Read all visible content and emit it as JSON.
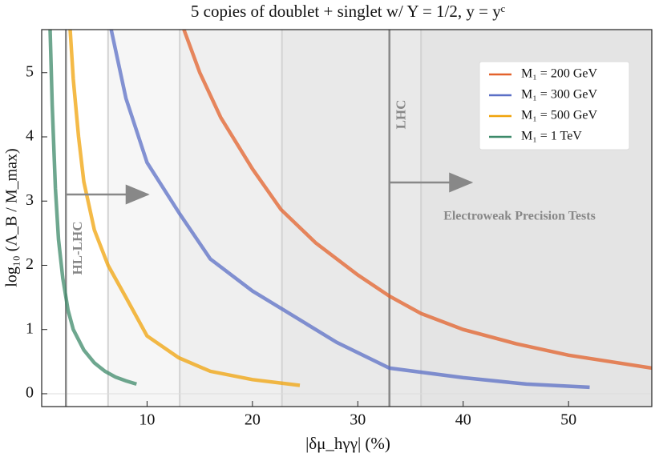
{
  "chart_data": {
    "type": "line",
    "title": "5 copies of doublet + singlet w/ Y = 1/2,  y = yᶜ",
    "x_label": "|δμ_hγγ| (%)",
    "y_label": "log₁₀ (Λ_B / M_max)",
    "xlim": [
      0,
      57.9
    ],
    "ylim": [
      -0.2,
      5.67
    ],
    "xticks": [
      10,
      20,
      30,
      40,
      50
    ],
    "yticks": [
      0,
      1,
      2,
      3,
      4,
      5
    ],
    "legend": "upper right",
    "bands": [
      6.3,
      13.1,
      22.8,
      36
    ],
    "vlines": [
      {
        "x": 2.3,
        "label": "HL-LHC"
      },
      {
        "x": 33,
        "label": "LHC"
      }
    ],
    "annotation": "Electroweak Precision Tests",
    "series": [
      {
        "name": "M₁ = 200 GeV",
        "color": "#e3622b",
        "x": [
          13.5,
          15,
          17,
          20,
          22.7,
          26,
          30,
          33,
          36,
          40,
          45,
          50,
          57.9
        ],
        "values": [
          5.67,
          5.0,
          4.3,
          3.5,
          2.87,
          2.35,
          1.85,
          1.52,
          1.25,
          1.0,
          0.78,
          0.6,
          0.4
        ]
      },
      {
        "name": "M₁ = 300 GeV",
        "color": "#5b6fc6",
        "x": [
          6.6,
          8,
          10,
          13.1,
          16,
          20,
          23,
          28,
          33,
          40,
          46,
          52
        ],
        "values": [
          5.67,
          4.6,
          3.6,
          2.8,
          2.1,
          1.6,
          1.3,
          0.8,
          0.4,
          0.25,
          0.15,
          0.1
        ]
      },
      {
        "name": "M₁ = 500 GeV",
        "color": "#f0a30a",
        "x": [
          2.7,
          3,
          3.5,
          4,
          5,
          6.3,
          8,
          10,
          13,
          16,
          20,
          24.5
        ],
        "values": [
          5.67,
          4.9,
          4.0,
          3.3,
          2.55,
          2.0,
          1.5,
          0.9,
          0.56,
          0.35,
          0.22,
          0.13
        ]
      },
      {
        "name": "M₁ = 1 TeV",
        "color": "#3d8a6a",
        "x": [
          0.8,
          1.0,
          1.3,
          1.6,
          2.0,
          2.5,
          3,
          4,
          5,
          6,
          7,
          8,
          9
        ],
        "values": [
          5.67,
          4.5,
          3.2,
          2.4,
          1.8,
          1.3,
          1.0,
          0.68,
          0.48,
          0.35,
          0.26,
          0.2,
          0.15
        ]
      }
    ]
  }
}
